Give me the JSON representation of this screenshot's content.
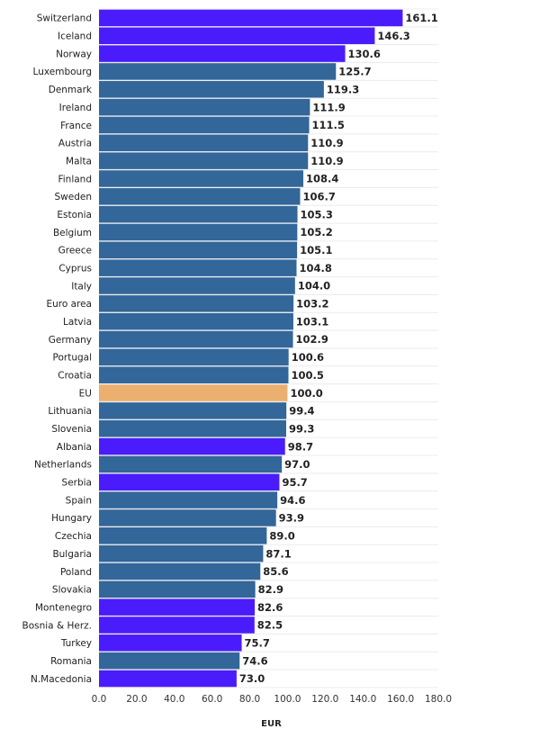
{
  "chart_data": {
    "type": "bar",
    "orientation": "horizontal",
    "title": "",
    "xlabel": "EUR",
    "ylabel": "",
    "xlim": [
      0,
      180
    ],
    "xticks": [
      "0.0",
      "20.0",
      "40.0",
      "60.0",
      "80.0",
      "100.0",
      "120.0",
      "140.0",
      "160.0",
      "180.0"
    ],
    "grid": true,
    "categories": [
      "Switzerland",
      "Iceland",
      "Norway",
      "Luxembourg",
      "Denmark",
      "Ireland",
      "France",
      "Austria",
      "Malta",
      "Finland",
      "Sweden",
      "Estonia",
      "Belgium",
      "Greece",
      "Cyprus",
      "Italy",
      "Euro area",
      "Latvia",
      "Germany",
      "Portugal",
      "Croatia",
      "EU",
      "Lithuania",
      "Slovenia",
      "Albania",
      "Netherlands",
      "Serbia",
      "Spain",
      "Hungary",
      "Czechia",
      "Bulgaria",
      "Poland",
      "Slovakia",
      "Montenegro",
      "Bosnia & Herz.",
      "Turkey",
      "Romania",
      "N.Macedonia"
    ],
    "values": [
      161.1,
      146.3,
      130.6,
      125.7,
      119.3,
      111.9,
      111.5,
      110.9,
      110.9,
      108.4,
      106.7,
      105.3,
      105.2,
      105.1,
      104.8,
      104.0,
      103.2,
      103.1,
      102.9,
      100.6,
      100.5,
      100.0,
      99.4,
      99.3,
      98.7,
      97.0,
      95.7,
      94.6,
      93.9,
      89.0,
      87.1,
      85.6,
      82.9,
      82.6,
      82.5,
      75.7,
      74.6,
      73.0
    ],
    "groups": [
      "non-EU",
      "non-EU",
      "non-EU",
      "EU",
      "EU",
      "EU",
      "EU",
      "EU",
      "EU",
      "EU",
      "EU",
      "EU",
      "EU",
      "EU",
      "EU",
      "EU",
      "EU",
      "EU",
      "EU",
      "EU",
      "EU",
      "aggregate",
      "EU",
      "EU",
      "non-EU",
      "EU",
      "non-EU",
      "EU",
      "EU",
      "EU",
      "EU",
      "EU",
      "EU",
      "non-EU",
      "non-EU",
      "non-EU",
      "EU",
      "non-EU"
    ],
    "colors": {
      "EU": "#336699",
      "non-EU": "#4a1cfc",
      "aggregate": "#ebaf6f",
      "grid": "#ececec"
    }
  }
}
